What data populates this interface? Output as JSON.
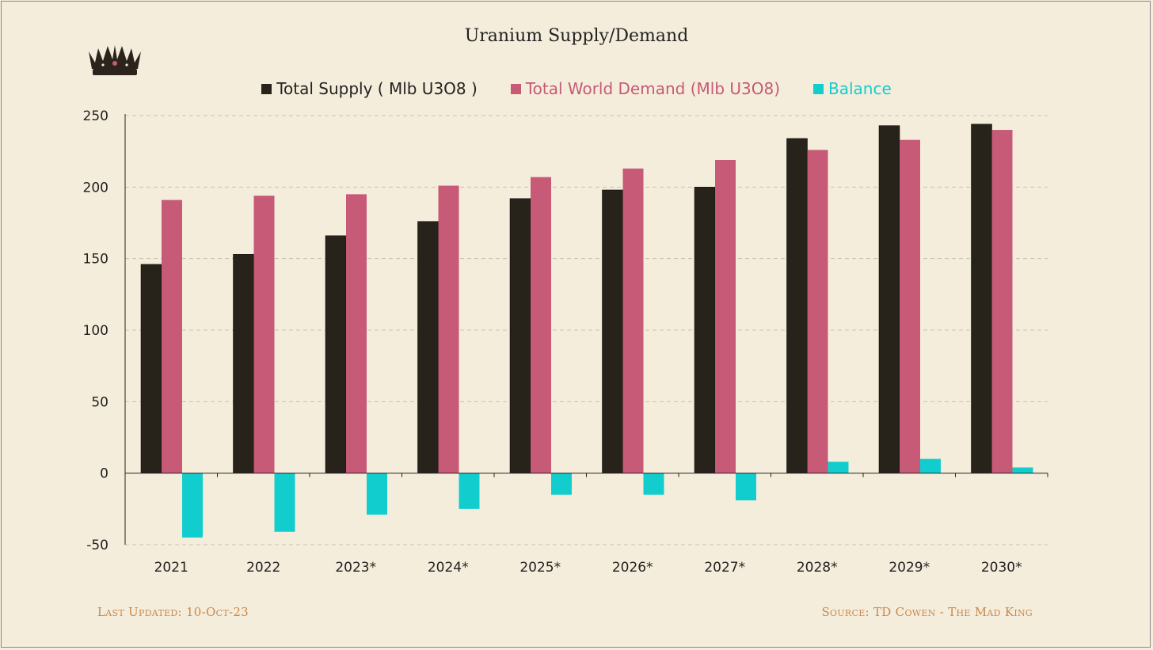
{
  "footer": {
    "left": "Last Updated: 10-Oct-23",
    "right": "Source: TD Cowen  - The Mad King"
  },
  "chart_data": {
    "type": "bar",
    "title": "Uranium Supply/Demand",
    "xlabel": "",
    "ylabel": "",
    "ylim": [
      -50,
      250
    ],
    "yticks": [
      250,
      200,
      150,
      100,
      50,
      0,
      -50
    ],
    "grid": true,
    "legend_position": "top",
    "categories": [
      "2021",
      "2022",
      "2023*",
      "2024*",
      "2025*",
      "2026*",
      "2027*",
      "2028*",
      "2029*",
      "2030*"
    ],
    "series": [
      {
        "name": "Total Supply ( Mlb U3O8 )",
        "color": "#27231b",
        "values": [
          146,
          153,
          166,
          176,
          192,
          198,
          200,
          234,
          243,
          244
        ]
      },
      {
        "name": "Total World Demand (Mlb U3O8)",
        "color": "#c65a77",
        "values": [
          191,
          194,
          195,
          201,
          207,
          213,
          219,
          226,
          233,
          240
        ]
      },
      {
        "name": "Balance",
        "color": "#12cdce",
        "values": [
          -45,
          -41,
          -29,
          -25,
          -15,
          -15,
          -19,
          8,
          10,
          4
        ]
      }
    ]
  }
}
